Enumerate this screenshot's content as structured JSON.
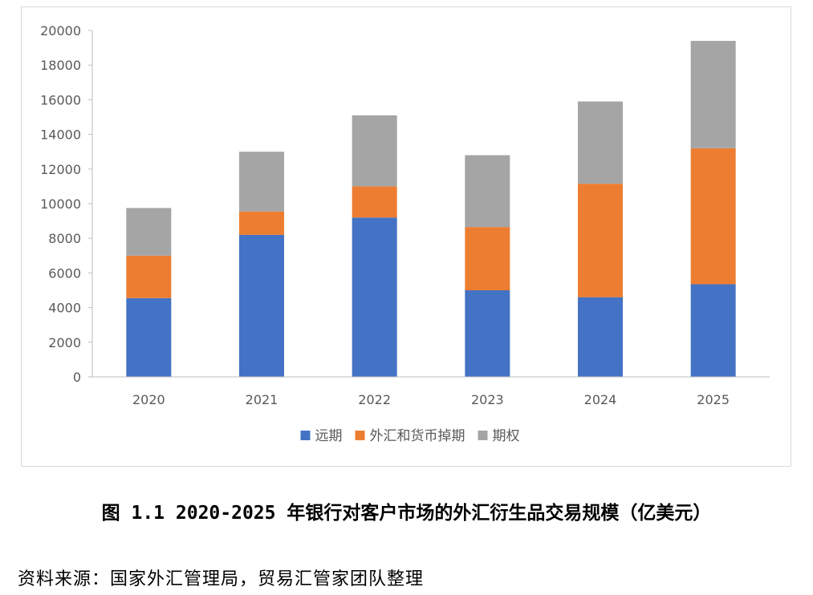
{
  "caption": "图 1.1 2020-2025 年银行对客户市场的外汇衍生品交易规模（亿美元）",
  "source_note": "资料来源：国家外汇管理局，贸易汇管家团队整理",
  "chart_data": {
    "type": "bar",
    "stacked": true,
    "title": "",
    "xlabel": "",
    "ylabel": "",
    "ylim": [
      0,
      20000
    ],
    "yticks": [
      "0",
      "2000",
      "4000",
      "6000",
      "8000",
      "10000",
      "12000",
      "14000",
      "16000",
      "18000",
      "20000"
    ],
    "categories": [
      "2020",
      "2021",
      "2022",
      "2023",
      "2024",
      "2025"
    ],
    "series": [
      {
        "name": "远期",
        "color": "#4472C4",
        "values": [
          4550,
          8200,
          9200,
          5000,
          4600,
          5350
        ]
      },
      {
        "name": "外汇和货币掉期",
        "color": "#ED7D31",
        "values": [
          2450,
          1350,
          1800,
          3650,
          6550,
          7850
        ]
      },
      {
        "name": "期权",
        "color": "#A5A5A5",
        "values": [
          2750,
          3450,
          4100,
          4150,
          4750,
          6200
        ]
      }
    ],
    "legend_position": "bottom",
    "grid": false
  }
}
